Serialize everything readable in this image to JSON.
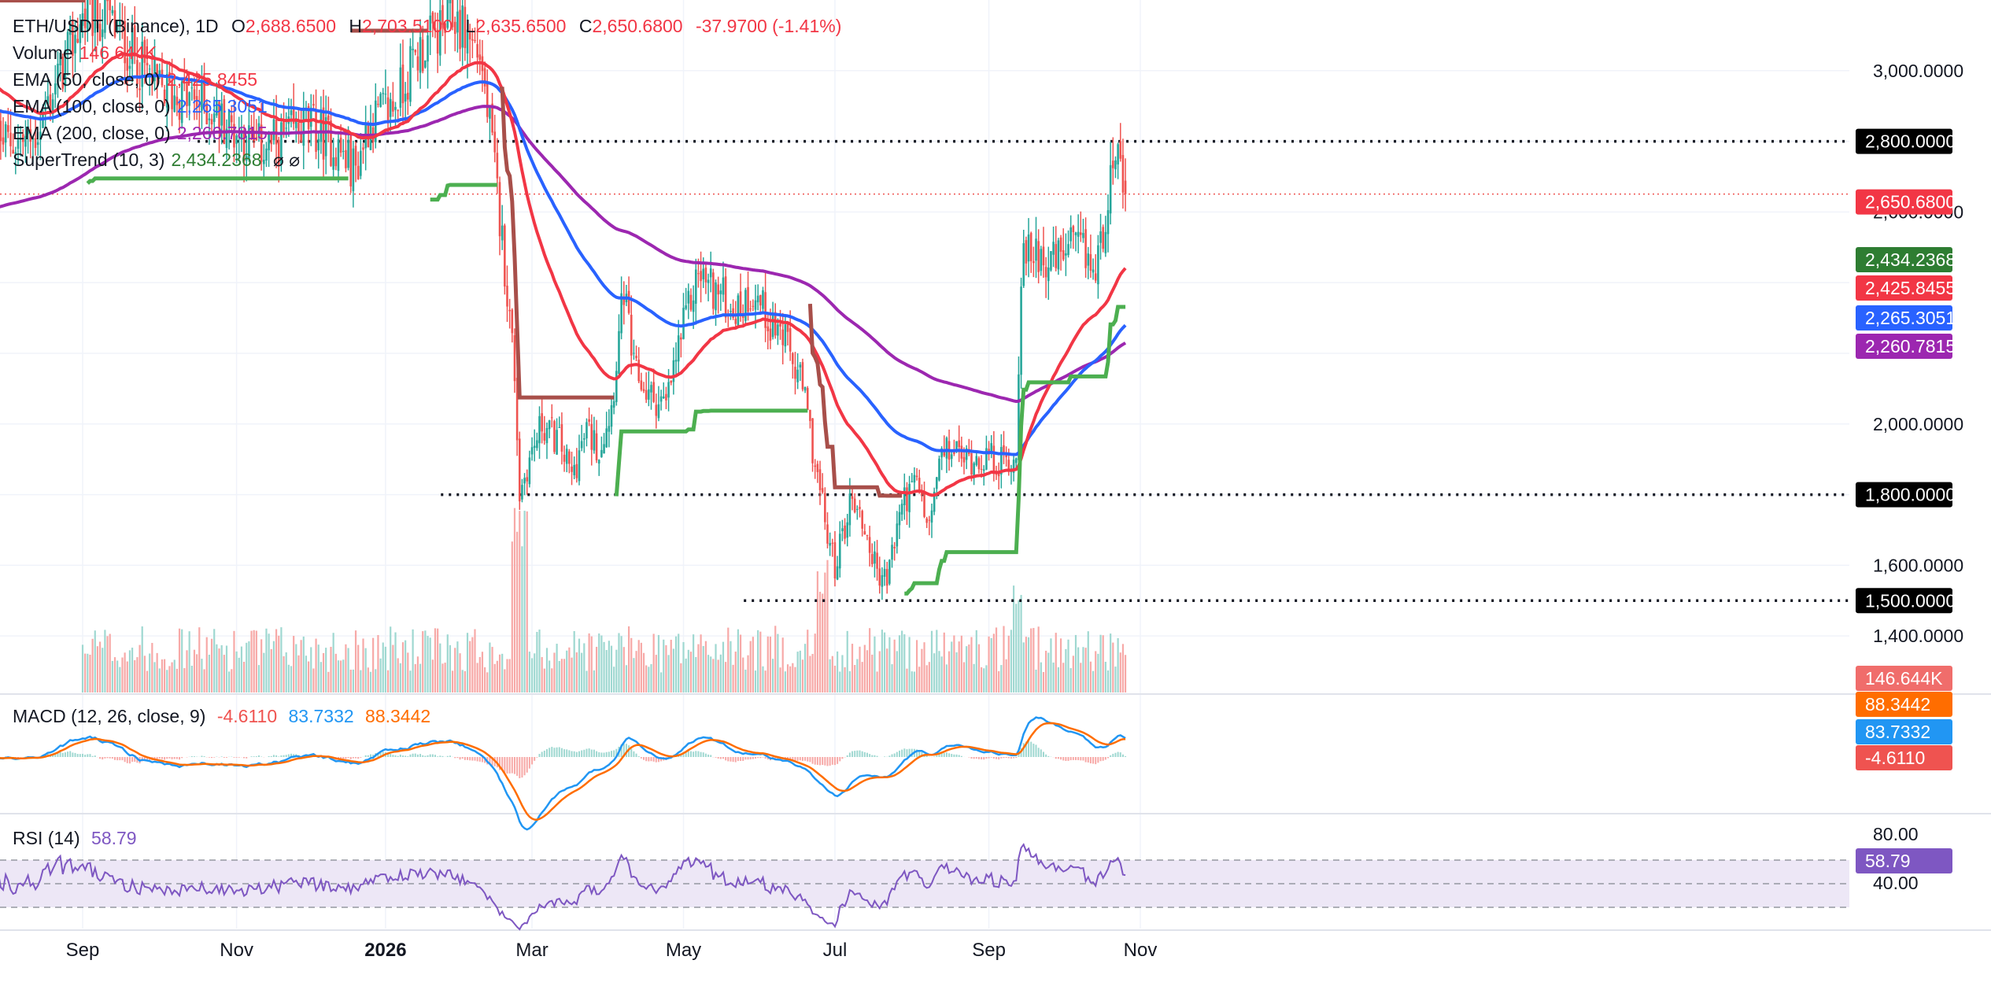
{
  "header": {
    "symbol": "ETH/USDT (Binance), 1D",
    "open_label": "O",
    "open": "2,688.6500",
    "high_label": "H",
    "high": "2,703.5100",
    "low_label": "L",
    "low": "2,635.6500",
    "close_label": "C",
    "close": "2,650.6800",
    "change": "-37.9700 (-1.41%)"
  },
  "legend": {
    "volume": {
      "label": "Volume",
      "value": "146.644K"
    },
    "ema50": {
      "label": "EMA (50, close, 0)",
      "value": "2,425.8455"
    },
    "ema100": {
      "label": "EMA (100, close, 0)",
      "value": "2,265.3051"
    },
    "ema200": {
      "label": "EMA (200, close, 0)",
      "value": "2,260.7815"
    },
    "supertrend": {
      "label": "SuperTrend (10, 3)",
      "value": "2,434.2368",
      "icons": "⌀ ⌀"
    }
  },
  "macd_legend": {
    "label": "MACD (12, 26, close, 9)",
    "hist": "-4.6110",
    "macd": "83.7332",
    "signal": "88.3442"
  },
  "rsi_legend": {
    "label": "RSI (14)",
    "value": "58.79"
  },
  "colors": {
    "up": "#26a69a",
    "down": "#ef5350",
    "ema50": "#f23645",
    "ema100": "#2962ff",
    "ema200": "#9c27b0",
    "supertrend_up": "#4caf50",
    "supertrend_down": "#a84f4a",
    "macd": "#2196f3",
    "signal": "#ff6d00",
    "rsi": "#7e57c2",
    "rsi_band": "#ede7f6"
  },
  "chart_data": {
    "type": "candlestick",
    "symbol": "ETH/USDT",
    "interval": "1D",
    "price_axis": {
      "ticks": [
        "3,000.0000",
        "2,600.0000",
        "2,000.0000",
        "1,600.0000",
        "1,400.0000"
      ],
      "tick_values": [
        3000,
        2600,
        2000,
        1600,
        1400
      ],
      "range": [
        1240,
        3200
      ]
    },
    "time_axis": {
      "labels": [
        "Sep",
        "Nov",
        "2026",
        "Mar",
        "May",
        "Jul",
        "Sep",
        "Nov"
      ],
      "bold": [
        false,
        false,
        true,
        false,
        false,
        false,
        false,
        false
      ],
      "day_index": [
        0,
        62,
        122,
        181,
        242,
        303,
        365,
        426
      ]
    },
    "horizontal_levels": [
      {
        "price": 2800,
        "label": "2,800.0000",
        "from_day": 78
      },
      {
        "price": 1800,
        "label": "1,800.0000",
        "from_day": 176
      },
      {
        "price": 1500,
        "label": "1,500.0000",
        "from_day": 298
      }
    ],
    "last_price": {
      "value": 2650.68,
      "label": "2,650.6800"
    },
    "price_badges": [
      {
        "label": "2,434.2368",
        "price": 2434.2368,
        "color": "#2e7d32"
      },
      {
        "label": "2,425.8455",
        "price": 2425.8455,
        "color": "#f23645"
      },
      {
        "label": "2,265.3051",
        "price": 2265.3051,
        "color": "#2962ff"
      },
      {
        "label": "2,260.7815",
        "price": 2260.7815,
        "color": "#9c27b0"
      }
    ],
    "volume_badge": {
      "label": "146.644K",
      "color": "#ef5350"
    },
    "macd": {
      "badges": [
        {
          "label": "88.3442",
          "color": "#ff6d00"
        },
        {
          "label": "83.7332",
          "color": "#2196f3"
        },
        {
          "label": "-4.6110",
          "color": "#ef5350"
        }
      ]
    },
    "rsi": {
      "upper": 70,
      "lower": 30,
      "middle": 50,
      "ticks": [
        "80.00",
        "40.00"
      ],
      "value": 58.79,
      "badge": "58.79"
    },
    "anchors": [
      [
        -20,
        2800
      ],
      [
        0,
        3150
      ],
      [
        10,
        3150
      ],
      [
        30,
        2950
      ],
      [
        50,
        2900
      ],
      [
        70,
        2780
      ],
      [
        80,
        2800
      ],
      [
        90,
        2850
      ],
      [
        100,
        2800
      ],
      [
        110,
        2720
      ],
      [
        115,
        2850
      ],
      [
        125,
        2900
      ],
      [
        135,
        3050
      ],
      [
        150,
        3150
      ],
      [
        160,
        3050
      ],
      [
        165,
        2780
      ],
      [
        170,
        2450
      ],
      [
        174,
        2150
      ],
      [
        176,
        1800
      ],
      [
        179,
        1880
      ],
      [
        185,
        2000
      ],
      [
        192,
        1950
      ],
      [
        197,
        1850
      ],
      [
        203,
        1980
      ],
      [
        208,
        1930
      ],
      [
        213,
        2050
      ],
      [
        218,
        2380
      ],
      [
        222,
        2150
      ],
      [
        228,
        2080
      ],
      [
        235,
        2050
      ],
      [
        240,
        2220
      ],
      [
        248,
        2430
      ],
      [
        256,
        2370
      ],
      [
        264,
        2320
      ],
      [
        270,
        2380
      ],
      [
        276,
        2300
      ],
      [
        282,
        2250
      ],
      [
        290,
        2100
      ],
      [
        296,
        1850
      ],
      [
        300,
        1680
      ],
      [
        303,
        1600
      ],
      [
        310,
        1800
      ],
      [
        315,
        1700
      ],
      [
        320,
        1580
      ],
      [
        324,
        1560
      ],
      [
        330,
        1780
      ],
      [
        336,
        1830
      ],
      [
        341,
        1700
      ],
      [
        345,
        1890
      ],
      [
        350,
        1930
      ],
      [
        356,
        1900
      ],
      [
        362,
        1910
      ],
      [
        370,
        1890
      ],
      [
        376,
        1900
      ],
      [
        378,
        2450
      ],
      [
        384,
        2500
      ],
      [
        390,
        2450
      ],
      [
        398,
        2500
      ],
      [
        404,
        2480
      ],
      [
        408,
        2420
      ],
      [
        412,
        2600
      ],
      [
        415,
        2780
      ],
      [
        418,
        2700
      ],
      [
        420,
        2650.68
      ]
    ]
  }
}
